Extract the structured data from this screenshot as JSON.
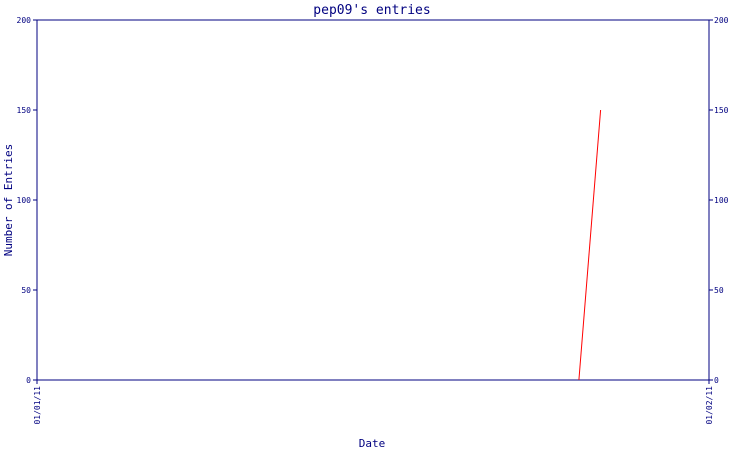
{
  "colors": {
    "axis": "#000080",
    "text": "#000080",
    "series": "#ff0000",
    "background": "#ffffff"
  },
  "chart_data": {
    "type": "line",
    "title": "pep09's entries",
    "xlabel": "Date",
    "ylabel": "Number of Entries",
    "x_ticks": [
      "01/01/11",
      "01/02/11"
    ],
    "xlim": [
      "2011-01-01",
      "2011-02-01"
    ],
    "ylim": [
      0,
      200
    ],
    "y_ticks": [
      0,
      50,
      100,
      150,
      200
    ],
    "right_axis": true,
    "grid": false,
    "series": [
      {
        "points": [
          {
            "x": "2011-01-26",
            "y": 0
          },
          {
            "x": "2011-01-27",
            "y": 150
          }
        ]
      }
    ]
  }
}
